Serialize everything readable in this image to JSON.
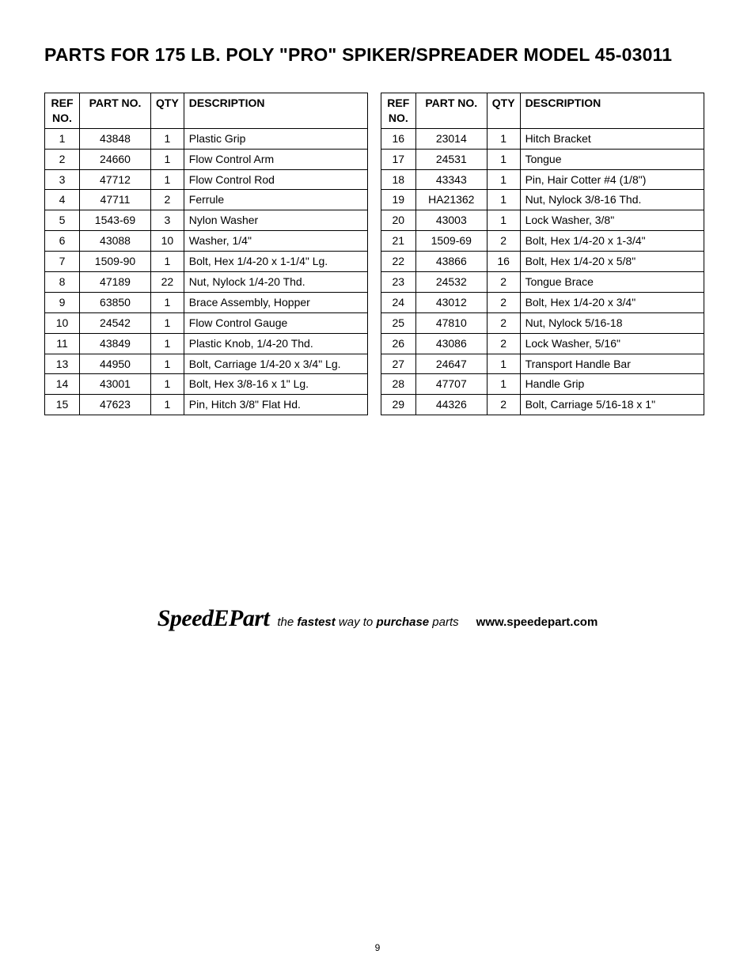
{
  "title": "PARTS FOR 175 LB. POLY \"PRO\" SPIKER/SPREADER MODEL 45-03011",
  "headers": {
    "ref_line1": "REF",
    "ref_line2": "NO.",
    "part": "PART NO.",
    "qty": "QTY",
    "desc": "DESCRIPTION"
  },
  "left_rows": [
    {
      "ref": "1",
      "part": "43848",
      "qty": "1",
      "desc": "Plastic Grip"
    },
    {
      "ref": "2",
      "part": "24660",
      "qty": "1",
      "desc": "Flow Control Arm"
    },
    {
      "ref": "3",
      "part": "47712",
      "qty": "1",
      "desc": "Flow Control Rod"
    },
    {
      "ref": "4",
      "part": "47711",
      "qty": "2",
      "desc": "Ferrule"
    },
    {
      "ref": "5",
      "part": "1543-69",
      "qty": "3",
      "desc": "Nylon Washer"
    },
    {
      "ref": "6",
      "part": "43088",
      "qty": "10",
      "desc": "Washer, 1/4\""
    },
    {
      "ref": "7",
      "part": "1509-90",
      "qty": "1",
      "desc": "Bolt, Hex 1/4-20 x 1-1/4\" Lg."
    },
    {
      "ref": "8",
      "part": "47189",
      "qty": "22",
      "desc": "Nut, Nylock 1/4-20 Thd."
    },
    {
      "ref": "9",
      "part": "63850",
      "qty": "1",
      "desc": "Brace Assembly, Hopper"
    },
    {
      "ref": "10",
      "part": "24542",
      "qty": "1",
      "desc": "Flow Control Gauge"
    },
    {
      "ref": "11",
      "part": "43849",
      "qty": "1",
      "desc": "Plastic Knob, 1/4-20 Thd."
    },
    {
      "ref": "13",
      "part": "44950",
      "qty": "1",
      "desc": "Bolt, Carriage 1/4-20 x 3/4\" Lg."
    },
    {
      "ref": "14",
      "part": "43001",
      "qty": "1",
      "desc": "Bolt, Hex 3/8-16 x 1\" Lg."
    },
    {
      "ref": "15",
      "part": "47623",
      "qty": "1",
      "desc": "Pin, Hitch 3/8\" Flat Hd."
    }
  ],
  "right_rows": [
    {
      "ref": "16",
      "part": "23014",
      "qty": "1",
      "desc": "Hitch Bracket"
    },
    {
      "ref": "17",
      "part": "24531",
      "qty": "1",
      "desc": "Tongue"
    },
    {
      "ref": "18",
      "part": "43343",
      "qty": "1",
      "desc": "Pin, Hair Cotter #4 (1/8\")"
    },
    {
      "ref": "19",
      "part": "HA21362",
      "qty": "1",
      "desc": "Nut, Nylock 3/8-16 Thd."
    },
    {
      "ref": "20",
      "part": "43003",
      "qty": "1",
      "desc": "Lock Washer, 3/8\""
    },
    {
      "ref": "21",
      "part": "1509-69",
      "qty": "2",
      "desc": "Bolt, Hex 1/4-20 x 1-3/4\""
    },
    {
      "ref": "22",
      "part": "43866",
      "qty": "16",
      "desc": "Bolt, Hex 1/4-20 x 5/8\""
    },
    {
      "ref": "23",
      "part": "24532",
      "qty": "2",
      "desc": "Tongue Brace"
    },
    {
      "ref": "24",
      "part": "43012",
      "qty": "2",
      "desc": "Bolt, Hex 1/4-20 x 3/4\""
    },
    {
      "ref": "25",
      "part": "47810",
      "qty": "2",
      "desc": "Nut, Nylock 5/16-18"
    },
    {
      "ref": "26",
      "part": "43086",
      "qty": "2",
      "desc": "Lock Washer, 5/16\""
    },
    {
      "ref": "27",
      "part": "24647",
      "qty": "1",
      "desc": "Transport Handle Bar"
    },
    {
      "ref": "28",
      "part": "47707",
      "qty": "1",
      "desc": "Handle Grip"
    },
    {
      "ref": "29",
      "part": "44326",
      "qty": "2",
      "desc": "Bolt, Carriage 5/16-18 x 1\""
    }
  ],
  "brand": {
    "logo": "SpeedEPart",
    "tag_1": "the ",
    "tag_2": "fastest",
    "tag_3": " way to ",
    "tag_4": "purchase",
    "tag_5": " parts",
    "url": "www.speedepart.com"
  },
  "page_number": "9"
}
